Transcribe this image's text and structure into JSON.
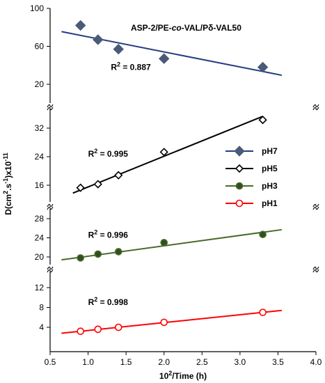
{
  "chart_data": {
    "type": "scatter",
    "title_parts": [
      {
        "text": "ASP-2/PE-",
        "italic": false
      },
      {
        "text": "co",
        "italic": true
      },
      {
        "text": "-VAL/Pδ-VAL50",
        "italic": false
      }
    ],
    "xlabel_base": "10",
    "xlabel_exp": "2",
    "xlabel_rest": "/Time (h)",
    "ylabel_base": "D(cm",
    "ylabel_exp1": "2",
    "ylabel_mid": ".s",
    "ylabel_exp2": "-1",
    "ylabel_tail": ")x10",
    "ylabel_exp3": "-11",
    "xlim": [
      0.5,
      4.0
    ],
    "x_ticks": [
      "0.5",
      "1.0",
      "1.5",
      "2.0",
      "2.5",
      "3.0",
      "3.5",
      "4.0"
    ],
    "panels": [
      {
        "series": "pH7",
        "ylim": [
          20,
          100
        ],
        "y_ticks": [
          20,
          60,
          100
        ],
        "x": [
          0.9,
          1.13,
          1.4,
          2.0,
          3.3
        ],
        "y": [
          82,
          67,
          57,
          47,
          38
        ],
        "fit": [
          [
            0.65,
            75.5
          ],
          [
            3.55,
            29.5
          ]
        ],
        "r2": "0.887",
        "r2_at": [
          1.3,
          35
        ]
      },
      {
        "series": "pH5",
        "ylim": [
          12,
          36
        ],
        "y_ticks": [
          16,
          24,
          32
        ],
        "x": [
          0.9,
          1.13,
          1.4,
          2.0,
          3.3
        ],
        "y": [
          15.3,
          16.3,
          18.8,
          25.3,
          34.3
        ],
        "fit": [
          [
            0.8,
            13.8
          ],
          [
            3.3,
            35.3
          ]
        ],
        "r2": "0.995",
        "r2_at": [
          1.0,
          24
        ]
      },
      {
        "series": "pH3",
        "ylim": [
          18,
          28
        ],
        "y_ticks": [
          20,
          24,
          28
        ],
        "x": [
          0.9,
          1.13,
          1.4,
          2.0,
          3.3
        ],
        "y": [
          19.8,
          20.6,
          21.1,
          23.0,
          24.7
        ],
        "fit": [
          [
            0.65,
            19.4
          ],
          [
            3.55,
            25.7
          ]
        ],
        "r2": "0.996",
        "r2_at": [
          1.0,
          24
        ]
      },
      {
        "series": "pH1",
        "ylim": [
          0,
          14
        ],
        "y_ticks": [
          4,
          8,
          12
        ],
        "x": [
          0.9,
          1.13,
          1.4,
          2.0,
          3.3
        ],
        "y": [
          3.2,
          3.6,
          4.0,
          5.0,
          7.0
        ],
        "fit": [
          [
            0.65,
            2.8
          ],
          [
            3.55,
            7.4
          ]
        ],
        "r2": "0.998",
        "r2_at": [
          1.0,
          8.5
        ]
      }
    ],
    "legend": {
      "placement": "right",
      "items": [
        {
          "label": "pH7",
          "color": "#223d7f",
          "marker": "diamond-filled",
          "fill": "#4a5a78"
        },
        {
          "label": "pH5",
          "color": "#000000",
          "marker": "diamond-open",
          "fill": "#ffffff"
        },
        {
          "label": "pH3",
          "color": "#4a6a2a",
          "marker": "circle-filled",
          "fill": "#2f4f1f"
        },
        {
          "label": "pH1",
          "color": "#ff0000",
          "marker": "circle-open",
          "fill": "#ffffff"
        }
      ]
    }
  }
}
